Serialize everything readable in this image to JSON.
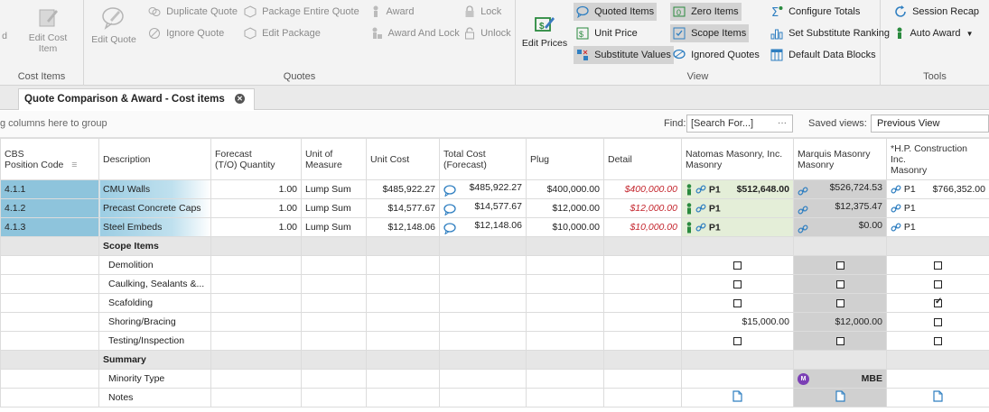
{
  "ribbon": {
    "cost_items": {
      "group_label": "Cost Items",
      "edit_cost_item": "Edit Cost Item"
    },
    "quotes": {
      "group_label": "Quotes",
      "edit_quote": "Edit Quote",
      "duplicate_quote": "Duplicate Quote",
      "ignore_quote": "Ignore Quote",
      "package_entire_quote": "Package Entire Quote",
      "edit_package": "Edit Package",
      "award": "Award",
      "award_and_lock": "Award And Lock",
      "lock": "Lock",
      "unlock": "Unlock"
    },
    "view": {
      "group_label": "View",
      "edit_prices": "Edit Prices",
      "quoted_items": "Quoted Items",
      "unit_price": "Unit Price",
      "substitute_values": "Substitute Values",
      "zero_items": "Zero Items",
      "scope_items": "Scope Items",
      "ignored_quotes": "Ignored Quotes",
      "configure_totals": "Configure Totals",
      "set_substitute_ranking": "Set Substitute Ranking",
      "default_data_blocks": "Default Data Blocks"
    },
    "tools": {
      "group_label": "Tools",
      "session_recap": "Session Recap",
      "auto_award": "Auto Award"
    }
  },
  "tab": {
    "title": "Quote Comparison & Award - Cost items"
  },
  "toolbar": {
    "group_hint": "g columns here to group",
    "find_label": "Find:",
    "find_placeholder": "[Search For...]",
    "find_more": "···",
    "saved_views_label": "Saved views:",
    "saved_views_value": "Previous View"
  },
  "grid": {
    "columns": {
      "cbs_l1": "CBS",
      "cbs_l2": "Position Code",
      "description": "Description",
      "forecast_l1": "Forecast",
      "forecast_l2": "(T/O) Quantity",
      "uom_l1": "Unit of",
      "uom_l2": "Measure",
      "unit_cost": "Unit Cost",
      "total_l1": "Total Cost",
      "total_l2": "(Forecast)",
      "plug": "Plug",
      "detail": "Detail",
      "v1_l1": "Natomas Masonry, Inc.",
      "v1_l2": "Masonry",
      "v2_l1": "Marquis Masonry",
      "v2_l2": "Masonry",
      "v3_l1": "*H.P. Construction",
      "v3_l2": "Inc.",
      "v3_l3": "Masonry"
    },
    "cost_rows": [
      {
        "cbs": "4.1.1",
        "description": "CMU Walls",
        "qty": "1.00",
        "uom": "Lump Sum",
        "unit_cost": "$485,922.27",
        "total": "$485,922.27",
        "plug": "$400,000.00",
        "detail": "$400,000.00",
        "v1_rank": "P1",
        "v1_value": "$512,648.00",
        "v2_value": "$526,724.53",
        "v3_rank": "P1",
        "v3_value": "$766,352.00"
      },
      {
        "cbs": "4.1.2",
        "description": "Precast Concrete Caps",
        "qty": "1.00",
        "uom": "Lump Sum",
        "unit_cost": "$14,577.67",
        "total": "$14,577.67",
        "plug": "$12,000.00",
        "detail": "$12,000.00",
        "v1_rank": "P1",
        "v1_value": "",
        "v2_value": "$12,375.47",
        "v3_rank": "P1",
        "v3_value": ""
      },
      {
        "cbs": "4.1.3",
        "description": "Steel Embeds",
        "qty": "1.00",
        "uom": "Lump Sum",
        "unit_cost": "$12,148.06",
        "total": "$12,148.06",
        "plug": "$10,000.00",
        "detail": "$10,000.00",
        "v1_rank": "P1",
        "v1_value": "",
        "v2_value": "$0.00",
        "v3_rank": "P1",
        "v3_value": ""
      }
    ],
    "scope_section": "Scope Items",
    "scope_rows": [
      {
        "label": "Demolition",
        "v1": false,
        "v2": false,
        "v3": false
      },
      {
        "label": "Caulking, Sealants &...",
        "v1": false,
        "v2": false,
        "v3": false
      },
      {
        "label": "Scafolding",
        "v1": false,
        "v2": false,
        "v3": true
      },
      {
        "label": "Shoring/Bracing",
        "v1_text": "$15,000.00",
        "v2_text": "$12,000.00",
        "v3": false
      },
      {
        "label": "Testing/Inspection",
        "v1": false,
        "v2": false,
        "v3": false
      }
    ],
    "summary_section": "Summary",
    "minority_label": "Minority Type",
    "minority_badge": "M",
    "minority_value": "MBE",
    "notes_label": "Notes"
  }
}
